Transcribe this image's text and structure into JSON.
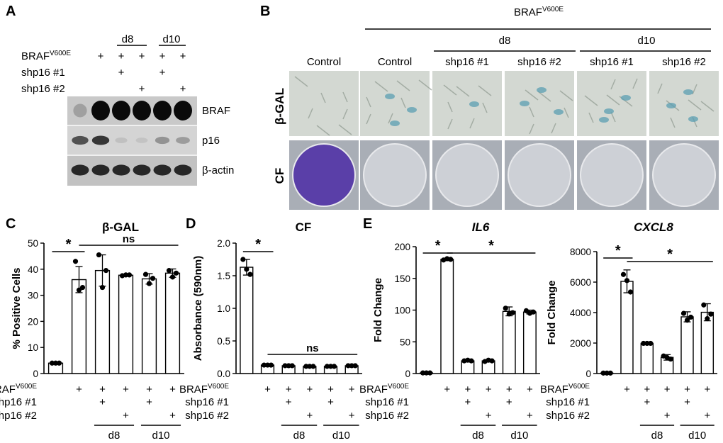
{
  "panels": {
    "A": "A",
    "B": "B",
    "C": "C",
    "D": "D",
    "E": "E"
  },
  "blot": {
    "day_labels": [
      "d8",
      "d10"
    ],
    "row_labels": [
      "BRAF",
      "V600E",
      "shp16 #1",
      "shp16 #2"
    ],
    "lane_marks": {
      "braf": [
        "",
        "+",
        "+",
        "+",
        "+",
        "+"
      ],
      "shp1": [
        "",
        "",
        "+",
        "",
        "+",
        ""
      ],
      "shp2": [
        "",
        "",
        "",
        "+",
        "",
        "+"
      ]
    },
    "bands": [
      "BRAF",
      "p16",
      "β-actin"
    ],
    "band_intensity": {
      "BRAF": [
        0.35,
        1,
        1,
        1,
        1,
        1
      ],
      "p16": [
        0.75,
        0.85,
        0.15,
        0.12,
        0.45,
        0.4
      ],
      "β-actin": [
        0.9,
        0.9,
        0.9,
        0.9,
        0.9,
        0.9
      ]
    }
  },
  "micro": {
    "top_label": "BRAF",
    "top_super": "V600E",
    "groups": [
      "d8",
      "d10"
    ],
    "columns": [
      "Control",
      "Control",
      "shp16 #1",
      "shp16 #2",
      "shp16 #1",
      "shp16 #2"
    ],
    "row_labels": [
      "β-GAL",
      "CF"
    ]
  },
  "xlabels": {
    "braf": "BRAF",
    "braf_super": "V600E",
    "shp1": "shp16 #1",
    "shp2": "shp16 #2",
    "plus": "+",
    "d8": "d8",
    "d10": "d10"
  },
  "chart_data": [
    {
      "type": "bar",
      "title": "β-GAL",
      "ylabel": "% Positive Cells",
      "ylim": [
        0,
        50
      ],
      "yticks": [
        0,
        10,
        20,
        30,
        40,
        50
      ],
      "values": [
        4,
        36,
        39.5,
        37.7,
        36.3,
        38.5
      ],
      "errors": [
        0,
        5,
        6,
        0.4,
        2,
        1.6
      ],
      "points": [
        [
          4,
          4,
          4
        ],
        [
          43,
          32,
          33
        ],
        [
          45.5,
          33,
          39.5
        ],
        [
          37.5,
          37.8,
          37.8
        ],
        [
          38,
          34.5,
          36.5
        ],
        [
          39.5,
          37,
          38.5
        ]
      ],
      "significance": [
        {
          "from": 0,
          "to": 1,
          "label": "*"
        },
        {
          "from": 1,
          "to": 5,
          "label": "ns"
        }
      ],
      "title_italic": false
    },
    {
      "type": "bar",
      "title": "CF",
      "ylabel": "Absorbance (590nm)",
      "ylim": [
        0,
        2.0
      ],
      "yticks": [
        "0.0",
        "0.5",
        "1.0",
        "1.5",
        "2.0"
      ],
      "values": [
        1.63,
        0.13,
        0.12,
        0.11,
        0.11,
        0.12
      ],
      "errors": [
        0.12,
        0.01,
        0.01,
        0.01,
        0.01,
        0.01
      ],
      "points": [
        [
          1.75,
          1.6,
          1.52
        ],
        [
          0.13,
          0.13,
          0.13
        ],
        [
          0.12,
          0.12,
          0.12
        ],
        [
          0.11,
          0.11,
          0.11
        ],
        [
          0.11,
          0.11,
          0.11
        ],
        [
          0.12,
          0.12,
          0.12
        ]
      ],
      "significance": [
        {
          "from": 0,
          "to": 1,
          "label": "*"
        },
        {
          "from": 1,
          "to": 5,
          "label": "ns"
        }
      ],
      "title_italic": false
    },
    {
      "type": "bar",
      "title": "IL6",
      "ylabel": "Fold Change",
      "ylim": [
        0,
        200
      ],
      "yticks": [
        0,
        50,
        100,
        150,
        200
      ],
      "values": [
        1,
        180,
        20,
        20,
        98,
        97
      ],
      "errors": [
        0,
        2,
        1,
        1,
        7,
        3
      ],
      "points": [
        [
          1,
          1,
          1
        ],
        [
          179,
          181,
          180
        ],
        [
          20,
          21,
          20
        ],
        [
          19,
          21,
          20
        ],
        [
          103,
          94,
          96
        ],
        [
          99,
          95,
          97
        ]
      ],
      "significance": [
        {
          "from": 0,
          "to": 1,
          "label": "*"
        },
        {
          "from": 1,
          "to": 5,
          "label": "*"
        }
      ],
      "title_italic": true
    },
    {
      "type": "bar",
      "title": "CXCL8",
      "ylabel": "Fold Change",
      "ylim": [
        0,
        8000
      ],
      "yticks": [
        0,
        2000,
        4000,
        6000,
        8000
      ],
      "values": [
        30,
        6050,
        1980,
        1060,
        3720,
        4020
      ],
      "errors": [
        0,
        750,
        40,
        180,
        330,
        560
      ],
      "points": [
        [
          30,
          30,
          30
        ],
        [
          6500,
          6100,
          5350
        ],
        [
          1980,
          1980,
          1980
        ],
        [
          1150,
          1050,
          950
        ],
        [
          3950,
          3500,
          3700
        ],
        [
          4500,
          3600,
          3900
        ]
      ],
      "significance": [
        {
          "from": 0,
          "to": 1,
          "label": "*"
        },
        {
          "from": 1,
          "to": 5,
          "label": "*"
        }
      ],
      "title_italic": true
    }
  ]
}
